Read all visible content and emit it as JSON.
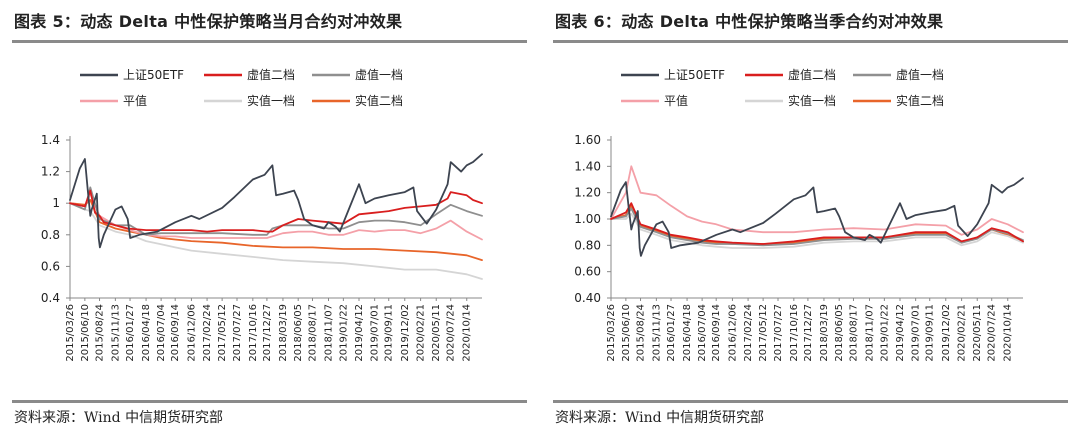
{
  "source": {
    "prefix": "资料来源：",
    "wind": "Wind",
    "org": "中信期货研究部"
  },
  "chart_data": [
    {
      "type": "line",
      "title_prefix": "图表 5：动态 ",
      "title_latin": "Delta",
      "title_suffix": " 中性保护策略当月合约对冲效果",
      "ylim": [
        0.4,
        1.4
      ],
      "yticks": [
        0.4,
        0.6,
        0.8,
        1,
        1.2,
        1.4
      ],
      "ytick_labels": [
        "0.4",
        "0.6",
        "0.8",
        "1",
        "1.2",
        "1.4"
      ],
      "grid": false,
      "legend_placement": "top",
      "date_range": [
        "2015-03-26",
        "2020-12-31"
      ],
      "xticks": [
        "2015/03/26",
        "2015/06/10",
        "2015/08/24",
        "2015/11/13",
        "2016/01/27",
        "2016/04/18",
        "2016/07/04",
        "2016/09/14",
        "2016/12/06",
        "2017/02/24",
        "2017/05/12",
        "2017/07/27",
        "2017/10/16",
        "2017/12/27",
        "2018/03/19",
        "2018/06/05",
        "2018/08/17",
        "2018/11/07",
        "2019/01/22",
        "2019/04/12",
        "2019/07/01",
        "2019/09/11",
        "2019/12/02",
        "2020/02/21",
        "2020/05/11",
        "2020/07/24",
        "2020/10/14"
      ],
      "series": [
        {
          "name": "上证50ETF",
          "color": "#3d4450",
          "x": [
            "2015-03-26",
            "2015-05-15",
            "2015-06-10",
            "2015-06-25",
            "2015-07-08",
            "2015-07-15",
            "2015-08-10",
            "2015-08-20",
            "2015-08-26",
            "2015-09-15",
            "2015-11-13",
            "2015-12-15",
            "2016-01-15",
            "2016-01-28",
            "2016-03-15",
            "2016-06-15",
            "2016-09-15",
            "2016-12-06",
            "2017-01-15",
            "2017-05-12",
            "2017-07-15",
            "2017-10-16",
            "2017-12-15",
            "2018-01-24",
            "2018-02-12",
            "2018-03-19",
            "2018-05-15",
            "2018-06-05",
            "2018-07-05",
            "2018-08-17",
            "2018-10-15",
            "2018-11-07",
            "2018-12-15",
            "2019-01-04",
            "2019-02-25",
            "2019-04-12",
            "2019-05-15",
            "2019-07-01",
            "2019-09-11",
            "2019-12-02",
            "2020-01-15",
            "2020-02-03",
            "2020-03-23",
            "2020-05-11",
            "2020-07-08",
            "2020-07-24",
            "2020-09-15",
            "2020-10-14",
            "2020-11-15",
            "2020-12-31"
          ],
          "y": [
            1.02,
            1.22,
            1.28,
            1.08,
            0.92,
            0.96,
            1.06,
            0.78,
            0.72,
            0.8,
            0.96,
            0.98,
            0.9,
            0.78,
            0.8,
            0.82,
            0.88,
            0.92,
            0.9,
            0.97,
            1.04,
            1.15,
            1.18,
            1.24,
            1.05,
            1.06,
            1.08,
            1.02,
            0.9,
            0.86,
            0.84,
            0.88,
            0.85,
            0.82,
            0.98,
            1.12,
            1.0,
            1.03,
            1.05,
            1.07,
            1.1,
            0.95,
            0.87,
            0.96,
            1.12,
            1.26,
            1.2,
            1.24,
            1.26,
            1.31
          ]
        },
        {
          "name": "虚值二档",
          "color": "#d91e1e",
          "x": [
            "2015-03-26",
            "2015-06-10",
            "2015-07-08",
            "2015-08-01",
            "2015-08-24",
            "2015-09-15",
            "2015-11-13",
            "2016-01-15",
            "2016-04-18",
            "2016-07-04",
            "2016-09-14",
            "2016-12-06",
            "2017-02-24",
            "2017-05-12",
            "2017-07-27",
            "2017-10-16",
            "2017-12-27",
            "2018-01-24",
            "2018-03-19",
            "2018-06-05",
            "2018-08-17",
            "2018-11-07",
            "2019-01-22",
            "2019-04-12",
            "2019-07-01",
            "2019-09-11",
            "2019-12-02",
            "2020-02-21",
            "2020-05-11",
            "2020-07-08",
            "2020-07-24",
            "2020-10-14",
            "2020-11-15",
            "2020-12-31"
          ],
          "y": [
            1.0,
            0.98,
            1.08,
            0.94,
            0.92,
            0.88,
            0.86,
            0.84,
            0.83,
            0.83,
            0.83,
            0.83,
            0.82,
            0.83,
            0.83,
            0.83,
            0.82,
            0.82,
            0.86,
            0.9,
            0.89,
            0.88,
            0.87,
            0.93,
            0.94,
            0.95,
            0.97,
            0.98,
            0.99,
            1.03,
            1.07,
            1.05,
            1.02,
            1.0
          ]
        },
        {
          "name": "虚值一档",
          "color": "#8f8f8f",
          "x": [
            "2015-03-26",
            "2015-06-10",
            "2015-07-08",
            "2015-08-24",
            "2015-11-13",
            "2016-01-27",
            "2016-04-18",
            "2016-07-04",
            "2016-09-14",
            "2016-12-06",
            "2017-05-12",
            "2017-10-16",
            "2017-12-27",
            "2018-01-24",
            "2018-03-19",
            "2018-06-05",
            "2018-08-17",
            "2018-11-07",
            "2019-01-22",
            "2019-04-12",
            "2019-07-01",
            "2019-09-11",
            "2019-12-02",
            "2020-02-21",
            "2020-05-11",
            "2020-07-24",
            "2020-10-14",
            "2020-12-31"
          ],
          "y": [
            1.0,
            0.96,
            1.1,
            0.9,
            0.86,
            0.86,
            0.8,
            0.81,
            0.81,
            0.81,
            0.81,
            0.8,
            0.8,
            0.84,
            0.86,
            0.86,
            0.86,
            0.84,
            0.84,
            0.88,
            0.89,
            0.89,
            0.88,
            0.86,
            0.93,
            0.99,
            0.95,
            0.92
          ]
        },
        {
          "name": "平值",
          "color": "#f4a0a8",
          "x": [
            "2015-03-26",
            "2015-06-10",
            "2015-07-08",
            "2015-08-24",
            "2015-11-13",
            "2016-01-27",
            "2016-04-18",
            "2016-07-04",
            "2016-09-14",
            "2016-12-06",
            "2017-05-12",
            "2017-10-16",
            "2017-12-27",
            "2018-03-19",
            "2018-06-05",
            "2018-08-17",
            "2018-11-07",
            "2019-01-22",
            "2019-04-12",
            "2019-07-01",
            "2019-09-11",
            "2019-12-02",
            "2020-02-21",
            "2020-05-11",
            "2020-07-24",
            "2020-10-14",
            "2020-12-31"
          ],
          "y": [
            1.0,
            0.98,
            1.06,
            0.92,
            0.86,
            0.83,
            0.8,
            0.79,
            0.79,
            0.78,
            0.78,
            0.78,
            0.78,
            0.81,
            0.82,
            0.82,
            0.8,
            0.8,
            0.83,
            0.82,
            0.83,
            0.83,
            0.81,
            0.84,
            0.89,
            0.82,
            0.77
          ]
        },
        {
          "name": "实值一档",
          "color": "#d5d5d5",
          "x": [
            "2015-03-26",
            "2015-06-10",
            "2015-07-08",
            "2015-08-24",
            "2015-11-13",
            "2016-01-27",
            "2016-04-18",
            "2016-07-04",
            "2016-09-14",
            "2016-12-06",
            "2017-05-12",
            "2017-10-16",
            "2018-03-19",
            "2018-08-17",
            "2019-01-22",
            "2019-07-01",
            "2019-12-02",
            "2020-05-11",
            "2020-10-14",
            "2020-12-31"
          ],
          "y": [
            1.0,
            0.96,
            0.95,
            0.86,
            0.82,
            0.8,
            0.76,
            0.74,
            0.72,
            0.7,
            0.68,
            0.66,
            0.64,
            0.63,
            0.62,
            0.6,
            0.58,
            0.58,
            0.55,
            0.52
          ]
        },
        {
          "name": "实值二档",
          "color": "#e8652a",
          "x": [
            "2015-03-26",
            "2015-06-10",
            "2015-07-08",
            "2015-08-24",
            "2015-11-13",
            "2016-01-27",
            "2016-04-18",
            "2016-07-04",
            "2016-09-14",
            "2016-12-06",
            "2017-05-12",
            "2017-10-16",
            "2018-03-19",
            "2018-08-17",
            "2019-01-22",
            "2019-07-01",
            "2019-12-02",
            "2020-05-11",
            "2020-10-14",
            "2020-12-31"
          ],
          "y": [
            1.0,
            0.99,
            1.02,
            0.88,
            0.84,
            0.82,
            0.8,
            0.78,
            0.77,
            0.76,
            0.75,
            0.73,
            0.72,
            0.72,
            0.71,
            0.71,
            0.7,
            0.69,
            0.67,
            0.64
          ]
        }
      ]
    },
    {
      "type": "line",
      "title_prefix": "图表 6：动态 ",
      "title_latin": "Delta",
      "title_suffix": " 中性保护策略当季合约对冲效果",
      "ylim": [
        0.4,
        1.6
      ],
      "yticks": [
        0.4,
        0.6,
        0.8,
        1.0,
        1.2,
        1.4,
        1.6
      ],
      "ytick_labels": [
        "0.40",
        "0.60",
        "0.80",
        "1.00",
        "1.20",
        "1.40",
        "1.60"
      ],
      "grid": false,
      "legend_placement": "top",
      "date_range": [
        "2015-03-26",
        "2020-12-31"
      ],
      "xticks": [
        "2015/03/26",
        "2015/06/10",
        "2015/08/24",
        "2015/11/13",
        "2016/01/27",
        "2016/04/18",
        "2016/07/04",
        "2016/09/14",
        "2016/12/06",
        "2017/02/24",
        "2017/05/12",
        "2017/07/27",
        "2017/10/16",
        "2017/12/27",
        "2018/03/19",
        "2018/06/05",
        "2018/08/17",
        "2018/11/07",
        "2019/01/22",
        "2019/04/12",
        "2019/07/01",
        "2019/09/11",
        "2019/12/02",
        "2020/02/21",
        "2020/05/11",
        "2020/07/24",
        "2020/10/14"
      ],
      "series": [
        {
          "name": "上证50ETF",
          "color": "#3d4450",
          "x": [
            "2015-03-26",
            "2015-05-15",
            "2015-06-10",
            "2015-06-25",
            "2015-07-08",
            "2015-07-15",
            "2015-08-10",
            "2015-08-20",
            "2015-08-26",
            "2015-09-15",
            "2015-11-13",
            "2015-12-15",
            "2016-01-15",
            "2016-01-28",
            "2016-03-15",
            "2016-06-15",
            "2016-09-15",
            "2016-12-06",
            "2017-01-15",
            "2017-05-12",
            "2017-07-15",
            "2017-10-16",
            "2017-12-15",
            "2018-01-24",
            "2018-02-12",
            "2018-03-19",
            "2018-05-15",
            "2018-06-05",
            "2018-07-05",
            "2018-08-17",
            "2018-10-15",
            "2018-11-07",
            "2018-12-15",
            "2019-01-04",
            "2019-02-25",
            "2019-04-12",
            "2019-05-15",
            "2019-07-01",
            "2019-09-11",
            "2019-12-02",
            "2020-01-15",
            "2020-02-03",
            "2020-03-23",
            "2020-05-11",
            "2020-07-08",
            "2020-07-24",
            "2020-09-15",
            "2020-10-14",
            "2020-11-15",
            "2020-12-31"
          ],
          "y": [
            1.02,
            1.22,
            1.28,
            1.08,
            0.92,
            0.96,
            1.06,
            0.78,
            0.72,
            0.8,
            0.96,
            0.98,
            0.9,
            0.78,
            0.8,
            0.82,
            0.88,
            0.92,
            0.9,
            0.97,
            1.04,
            1.15,
            1.18,
            1.24,
            1.05,
            1.06,
            1.08,
            1.02,
            0.9,
            0.86,
            0.84,
            0.88,
            0.85,
            0.82,
            0.98,
            1.12,
            1.0,
            1.03,
            1.05,
            1.07,
            1.1,
            0.95,
            0.87,
            0.96,
            1.12,
            1.26,
            1.2,
            1.24,
            1.26,
            1.31
          ]
        },
        {
          "name": "虚值二档",
          "color": "#d91e1e",
          "x": [
            "2015-03-26",
            "2015-06-10",
            "2015-07-08",
            "2015-08-24",
            "2015-11-13",
            "2016-01-27",
            "2016-04-18",
            "2016-07-04",
            "2016-09-14",
            "2016-12-06",
            "2017-05-12",
            "2017-10-16",
            "2018-03-19",
            "2018-08-17",
            "2019-01-22",
            "2019-07-01",
            "2019-12-02",
            "2020-02-21",
            "2020-05-11",
            "2020-07-24",
            "2020-10-14",
            "2020-12-31"
          ],
          "y": [
            1.0,
            1.05,
            1.12,
            0.96,
            0.92,
            0.88,
            0.86,
            0.84,
            0.83,
            0.82,
            0.81,
            0.83,
            0.86,
            0.86,
            0.86,
            0.9,
            0.9,
            0.83,
            0.86,
            0.93,
            0.9,
            0.83
          ]
        },
        {
          "name": "虚值一档",
          "color": "#8f8f8f",
          "x": [
            "2015-03-26",
            "2015-06-10",
            "2015-07-08",
            "2015-08-24",
            "2015-11-13",
            "2016-01-27",
            "2016-04-18",
            "2016-07-04",
            "2016-09-14",
            "2016-12-06",
            "2017-05-12",
            "2017-10-16",
            "2018-03-19",
            "2018-08-17",
            "2019-01-22",
            "2019-07-01",
            "2019-12-02",
            "2020-02-21",
            "2020-05-11",
            "2020-07-24",
            "2020-10-14",
            "2020-12-31"
          ],
          "y": [
            1.0,
            1.02,
            1.08,
            0.94,
            0.9,
            0.86,
            0.84,
            0.82,
            0.81,
            0.81,
            0.8,
            0.81,
            0.84,
            0.85,
            0.85,
            0.88,
            0.88,
            0.82,
            0.85,
            0.92,
            0.89,
            0.84
          ]
        },
        {
          "name": "平值",
          "color": "#f4a0a8",
          "x": [
            "2015-03-26",
            "2015-06-10",
            "2015-07-08",
            "2015-08-24",
            "2015-11-13",
            "2016-01-27",
            "2016-04-18",
            "2016-07-04",
            "2016-09-14",
            "2016-12-06",
            "2017-05-12",
            "2017-10-16",
            "2018-03-19",
            "2018-08-17",
            "2019-01-22",
            "2019-07-01",
            "2019-12-02",
            "2020-02-21",
            "2020-05-11",
            "2020-07-24",
            "2020-10-14",
            "2020-12-31"
          ],
          "y": [
            1.0,
            1.2,
            1.4,
            1.2,
            1.18,
            1.1,
            1.02,
            0.98,
            0.96,
            0.92,
            0.9,
            0.9,
            0.92,
            0.93,
            0.92,
            0.96,
            0.95,
            0.88,
            0.92,
            1.0,
            0.96,
            0.9
          ]
        },
        {
          "name": "实值一档",
          "color": "#d5d5d5",
          "x": [
            "2015-03-26",
            "2015-06-10",
            "2015-07-08",
            "2015-08-24",
            "2015-11-13",
            "2016-01-27",
            "2016-04-18",
            "2016-07-04",
            "2016-09-14",
            "2016-12-06",
            "2017-05-12",
            "2017-10-16",
            "2018-03-19",
            "2018-08-17",
            "2019-01-22",
            "2019-07-01",
            "2019-12-02",
            "2020-02-21",
            "2020-05-11",
            "2020-07-24",
            "2020-10-14",
            "2020-12-31"
          ],
          "y": [
            1.0,
            1.0,
            1.04,
            0.92,
            0.88,
            0.84,
            0.82,
            0.8,
            0.79,
            0.78,
            0.78,
            0.79,
            0.82,
            0.83,
            0.83,
            0.86,
            0.86,
            0.8,
            0.83,
            0.9,
            0.87,
            0.82
          ]
        },
        {
          "name": "实值二档",
          "color": "#e8652a",
          "x": [
            "2015-03-26",
            "2015-06-10",
            "2015-07-08",
            "2015-08-24",
            "2015-11-13",
            "2016-01-27",
            "2016-04-18",
            "2016-07-04",
            "2016-09-14",
            "2016-12-06",
            "2017-05-12",
            "2017-10-16",
            "2018-03-19",
            "2018-08-17",
            "2019-01-22",
            "2019-07-01",
            "2019-12-02",
            "2020-02-21",
            "2020-05-11",
            "2020-07-24",
            "2020-10-14",
            "2020-12-31"
          ],
          "y": [
            1.0,
            1.03,
            1.1,
            0.95,
            0.91,
            0.87,
            0.85,
            0.83,
            0.82,
            0.81,
            0.81,
            0.82,
            0.85,
            0.86,
            0.86,
            0.89,
            0.89,
            0.82,
            0.86,
            0.92,
            0.88,
            0.83
          ]
        }
      ]
    }
  ]
}
